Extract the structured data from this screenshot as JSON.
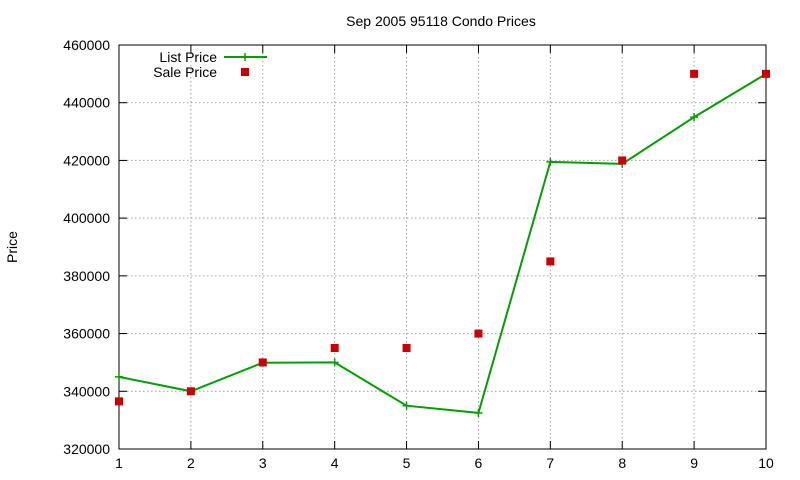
{
  "chart_data": {
    "type": "line",
    "title": "Sep 2005 95118 Condo Prices",
    "xlabel": "",
    "ylabel": "Price",
    "x": [
      1,
      2,
      3,
      4,
      5,
      6,
      7,
      8,
      9,
      10
    ],
    "xlim": [
      1,
      10
    ],
    "ylim": [
      320000,
      460000
    ],
    "x_ticks": [
      1,
      2,
      3,
      4,
      5,
      6,
      7,
      8,
      9,
      10
    ],
    "y_ticks": [
      320000,
      340000,
      360000,
      380000,
      400000,
      420000,
      440000,
      460000
    ],
    "grid": true,
    "legend_position": "top-left",
    "series": [
      {
        "name": "List Price",
        "style": "linespoints",
        "marker": "plus",
        "color": "#00a000",
        "values": [
          345000,
          340000,
          349900,
          350000,
          335000,
          332500,
          419500,
          418800,
          435000,
          450000
        ]
      },
      {
        "name": "Sale Price",
        "style": "points",
        "marker": "square",
        "color": "#cc0000",
        "values": [
          336500,
          340000,
          350000,
          355000,
          355000,
          360000,
          385000,
          420000,
          450000,
          450000
        ]
      }
    ]
  }
}
